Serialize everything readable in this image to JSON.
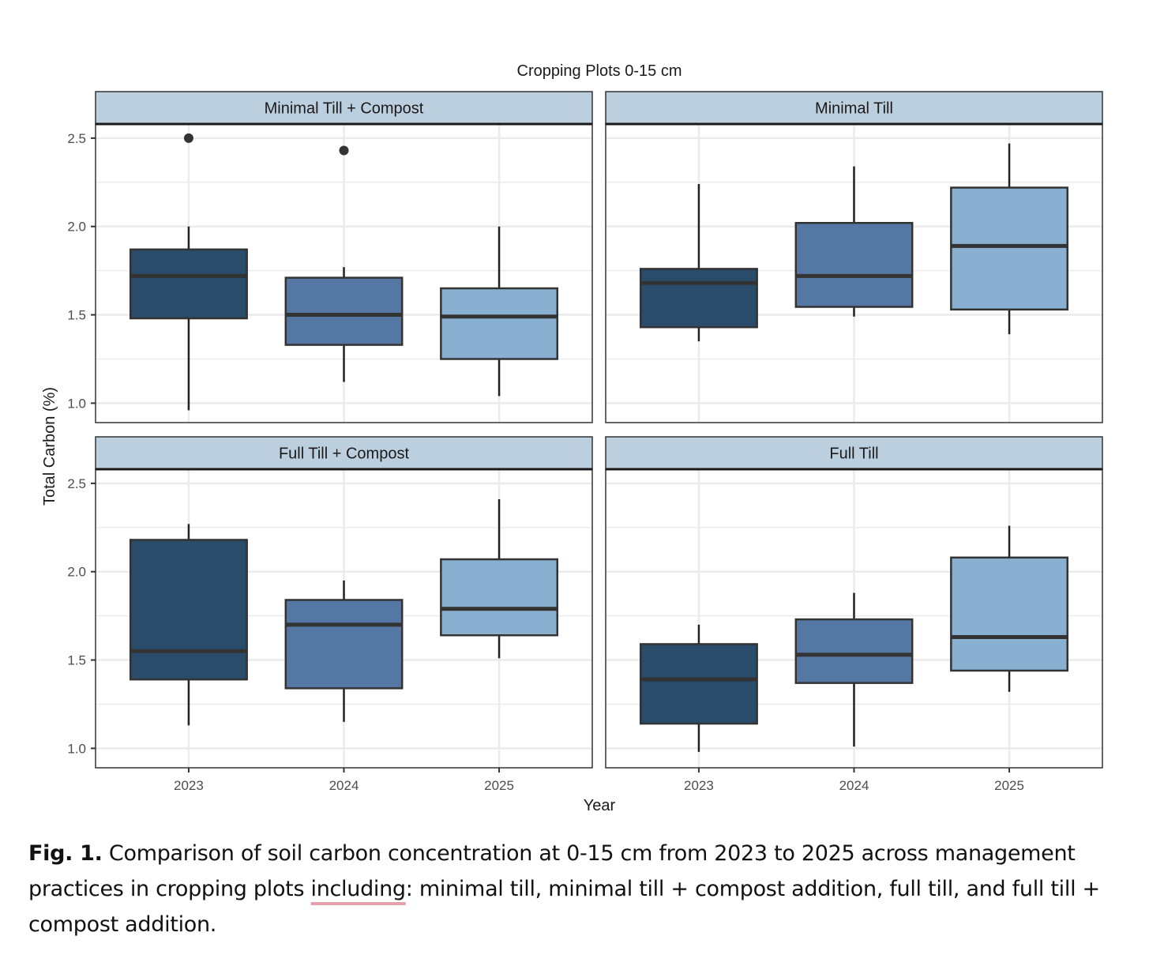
{
  "chart_data": {
    "type": "boxplot",
    "title": "Cropping Plots 0-15 cm",
    "xlabel": "Year",
    "ylabel": "Total Carbon (%)",
    "ylim": [
      0.89,
      2.58
    ],
    "yticks": [
      1.0,
      1.5,
      2.0,
      2.5
    ],
    "ytick_labels": [
      "1.0",
      "1.5",
      "2.0",
      "2.5"
    ],
    "categories": [
      "2023",
      "2024",
      "2025"
    ],
    "grid": true,
    "legend": "none",
    "colors": {
      "2023": "#2a4c6b",
      "2024": "#5478a3",
      "2025": "#8ab0d1",
      "strip": "#bccfdf",
      "outline": "#333333",
      "grid": "#ebebeb"
    },
    "panels": [
      {
        "name": "Minimal Till + Compost",
        "boxes": [
          {
            "year": "2023",
            "whisker_low": 0.96,
            "q1": 1.48,
            "median": 1.72,
            "q3": 1.87,
            "whisker_high": 2.0,
            "outliers": [
              2.5
            ]
          },
          {
            "year": "2024",
            "whisker_low": 1.12,
            "q1": 1.33,
            "median": 1.5,
            "q3": 1.71,
            "whisker_high": 1.77,
            "outliers": [
              2.43
            ]
          },
          {
            "year": "2025",
            "whisker_low": 1.04,
            "q1": 1.25,
            "median": 1.49,
            "q3": 1.65,
            "whisker_high": 2.0,
            "outliers": []
          }
        ]
      },
      {
        "name": "Minimal Till",
        "boxes": [
          {
            "year": "2023",
            "whisker_low": 1.35,
            "q1": 1.43,
            "median": 1.68,
            "q3": 1.76,
            "whisker_high": 2.24,
            "outliers": []
          },
          {
            "year": "2024",
            "whisker_low": 1.49,
            "q1": 1.545,
            "median": 1.72,
            "q3": 2.02,
            "whisker_high": 2.34,
            "outliers": []
          },
          {
            "year": "2025",
            "whisker_low": 1.39,
            "q1": 1.53,
            "median": 1.89,
            "q3": 2.22,
            "whisker_high": 2.47,
            "outliers": []
          }
        ]
      },
      {
        "name": "Full Till + Compost",
        "boxes": [
          {
            "year": "2023",
            "whisker_low": 1.13,
            "q1": 1.39,
            "median": 1.55,
            "q3": 2.18,
            "whisker_high": 2.27,
            "outliers": []
          },
          {
            "year": "2024",
            "whisker_low": 1.15,
            "q1": 1.34,
            "median": 1.7,
            "q3": 1.84,
            "whisker_high": 1.95,
            "outliers": []
          },
          {
            "year": "2025",
            "whisker_low": 1.51,
            "q1": 1.64,
            "median": 1.79,
            "q3": 2.07,
            "whisker_high": 2.41,
            "outliers": []
          }
        ]
      },
      {
        "name": "Full Till",
        "boxes": [
          {
            "year": "2023",
            "whisker_low": 0.98,
            "q1": 1.14,
            "median": 1.39,
            "q3": 1.59,
            "whisker_high": 1.7,
            "outliers": []
          },
          {
            "year": "2024",
            "whisker_low": 1.01,
            "q1": 1.37,
            "median": 1.53,
            "q3": 1.73,
            "whisker_high": 1.88,
            "outliers": []
          },
          {
            "year": "2025",
            "whisker_low": 1.32,
            "q1": 1.44,
            "median": 1.63,
            "q3": 2.08,
            "whisker_high": 2.26,
            "outliers": []
          }
        ]
      }
    ]
  },
  "caption": {
    "label": "Fig. 1.",
    "text_before": " Comparison of soil carbon concentration at 0-15 cm from 2023 to 2025 across management practices in cropping plots ",
    "underlined_word": "including",
    "text_after": ": minimal till, minimal till + compost addition, full till, and full till + compost addition."
  }
}
